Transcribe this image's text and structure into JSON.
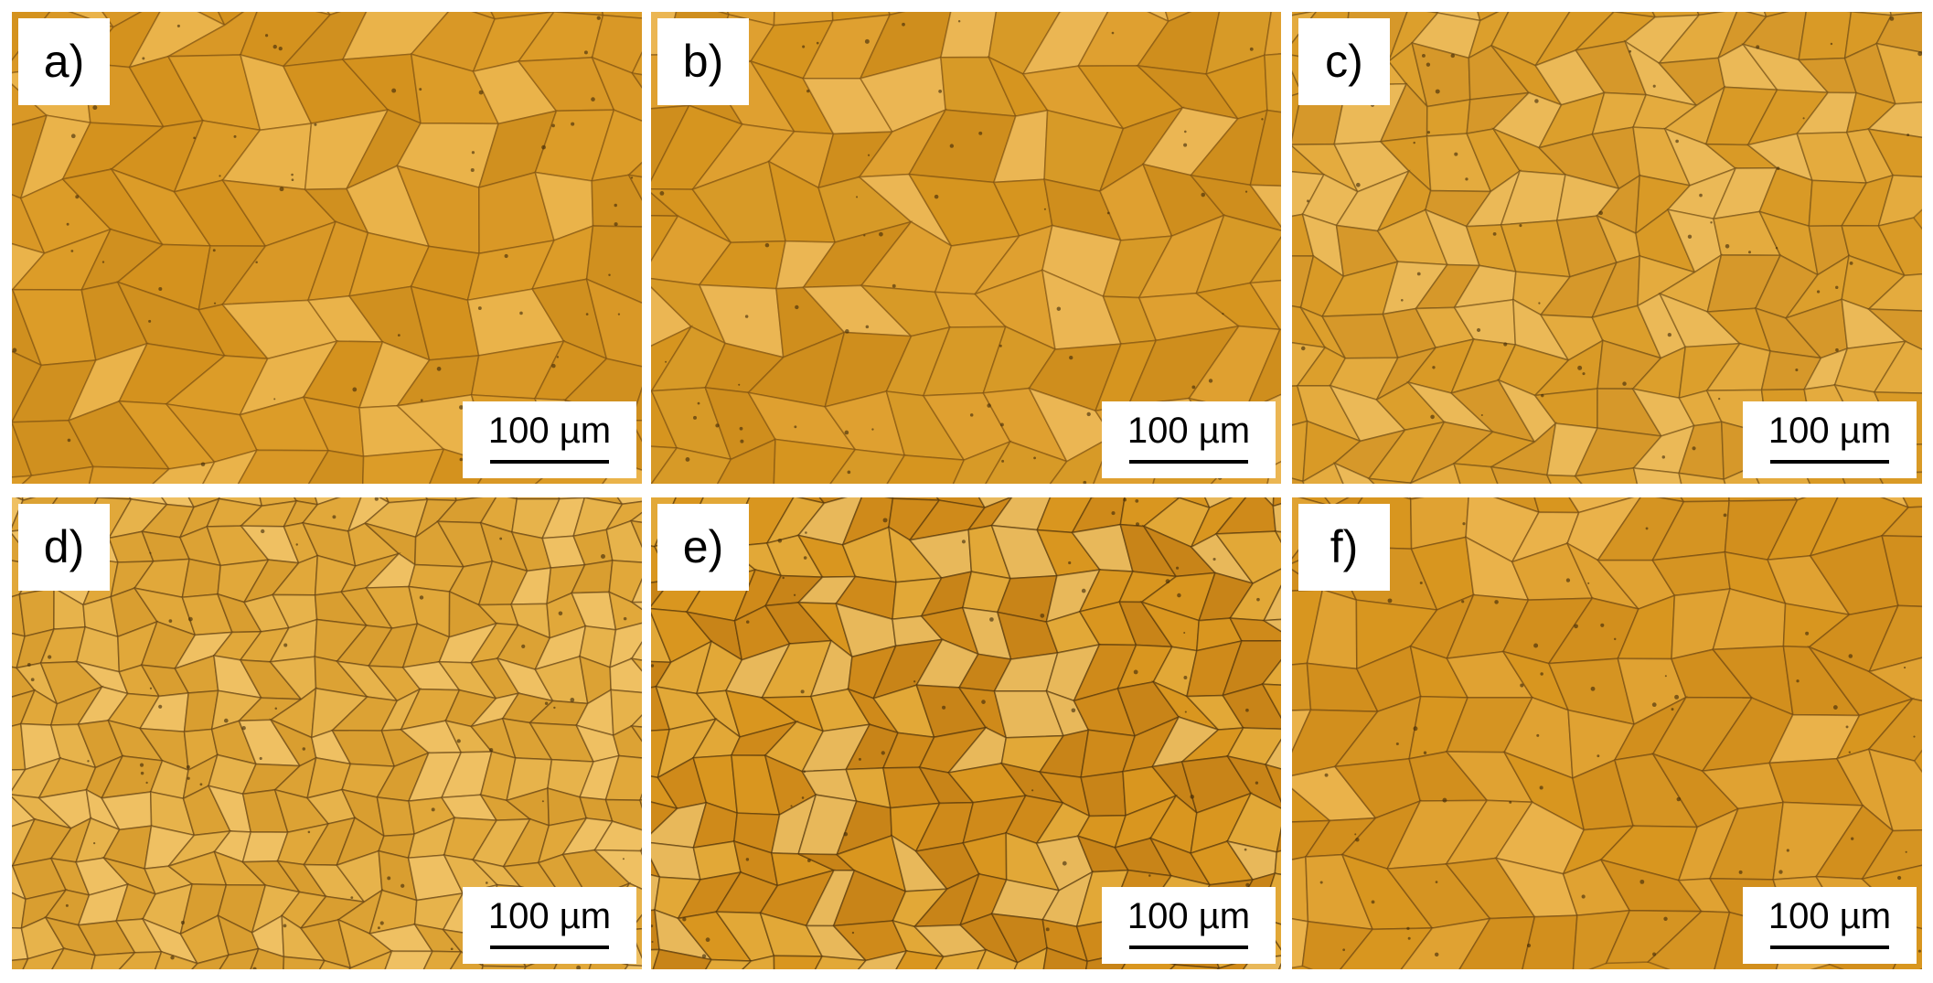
{
  "panels": [
    {
      "label": "a)",
      "scale_bar": "100 µm"
    },
    {
      "label": "b)",
      "scale_bar": "100 µm"
    },
    {
      "label": "c)",
      "scale_bar": "100 µm"
    },
    {
      "label": "d)",
      "scale_bar": "100 µm"
    },
    {
      "label": "e)",
      "scale_bar": "100 µm"
    },
    {
      "label": "f)",
      "scale_bar": "100 µm"
    }
  ]
}
